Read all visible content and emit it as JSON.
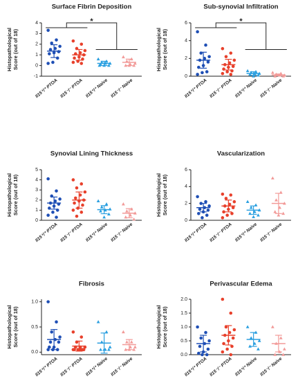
{
  "chart_data": [
    {
      "type": "strip",
      "title": "Surface Fibrin Deposition",
      "ylabel": [
        "Histopathological",
        "Score (out of 18)"
      ],
      "categories": [
        "Il15⁺/⁺ PTOA",
        "Il15⁻/⁻ PTOA",
        "Il15⁺/⁺ Naive",
        "Il15⁻/⁻ Naive"
      ],
      "colors": [
        "#1f4fb5",
        "#e8412c",
        "#2a9fe0",
        "#f29a98"
      ],
      "points": [
        [
          3.3,
          2.4,
          2.1,
          1.8,
          1.6,
          1.5,
          1.3,
          1.2,
          1.1,
          0.7,
          0.3,
          0.2
        ],
        [
          2.3,
          2.0,
          1.6,
          1.4,
          1.2,
          1.1,
          1.0,
          0.8,
          0.7,
          0.6,
          0.4,
          0.3,
          0.2
        ],
        [
          0.6,
          0.4,
          0.3,
          0.2,
          0.2,
          0.1,
          0.0,
          0.0,
          0.0
        ],
        [
          0.8,
          0.6,
          0.4,
          0.2,
          0.1,
          0.0,
          0.0,
          0.0
        ]
      ],
      "means": [
        1.35,
        1.0,
        0.2,
        0.3
      ],
      "errors": [
        0.6,
        0.5,
        0.2,
        0.3
      ],
      "ylim": [
        -1,
        4
      ],
      "yticks": [
        -1,
        0,
        1,
        2,
        3,
        4
      ],
      "annotation": "*"
    },
    {
      "type": "strip",
      "title": "Sub-synovial Infiltration",
      "ylabel": [
        "Histopathological",
        "Score (out of 18)"
      ],
      "categories": [
        "Il15⁺/⁺ PTOA",
        "Il15⁻/⁻ PTOA",
        "Il15⁺/⁺ Naive",
        "Il15⁻/⁻ Naive"
      ],
      "colors": [
        "#1f4fb5",
        "#e8412c",
        "#2a9fe0",
        "#f29a98"
      ],
      "points": [
        [
          5.0,
          3.5,
          2.6,
          2.2,
          2.0,
          1.8,
          1.6,
          1.2,
          1.0,
          0.5,
          0.4,
          0.2
        ],
        [
          3.1,
          2.6,
          2.2,
          1.8,
          1.5,
          1.3,
          1.1,
          1.0,
          0.8,
          0.6,
          0.5,
          0.3,
          0.2
        ],
        [
          0.6,
          0.5,
          0.4,
          0.3,
          0.3,
          0.2,
          0.1,
          0.0
        ],
        [
          0.4,
          0.3,
          0.2,
          0.1,
          0.1,
          0.0,
          0.0
        ]
      ],
      "means": [
        1.8,
        1.3,
        0.3,
        0.15
      ],
      "errors": [
        0.9,
        0.6,
        0.2,
        0.1
      ],
      "ylim": [
        0,
        6
      ],
      "yticks": [
        0,
        2,
        4,
        6
      ],
      "annotation": "*"
    },
    {
      "type": "strip",
      "title": "Synovial Lining Thickness",
      "ylabel": [
        "Histopathological",
        "Score (out of 18)"
      ],
      "categories": [
        "Il15⁺/⁺ PTOA",
        "Il15⁻/⁻ PTOA",
        "Il15⁺/⁺ Naive",
        "Il15⁻/⁻ Naive"
      ],
      "colors": [
        "#1f4fb5",
        "#e8412c",
        "#2a9fe0",
        "#f29a98"
      ],
      "points": [
        [
          4.1,
          2.9,
          2.4,
          2.1,
          1.9,
          1.7,
          1.6,
          1.4,
          1.2,
          1.0,
          0.8,
          0.5,
          0.3
        ],
        [
          4.0,
          3.6,
          3.2,
          2.8,
          2.5,
          2.2,
          2.0,
          1.9,
          1.7,
          1.5,
          1.2,
          1.0,
          0.8,
          0.4
        ],
        [
          1.9,
          1.6,
          1.3,
          1.1,
          1.0,
          0.9,
          0.6,
          0.3
        ],
        [
          1.6,
          1.1,
          0.9,
          0.7,
          0.5,
          0.3,
          0.1
        ]
      ],
      "means": [
        1.7,
        2.0,
        1.05,
        0.7
      ],
      "errors": [
        0.6,
        0.8,
        0.4,
        0.45
      ],
      "ylim": [
        0,
        5
      ],
      "yticks": [
        0,
        1,
        2,
        3,
        4,
        5
      ]
    },
    {
      "type": "strip",
      "title": "Vascularization",
      "ylabel": [
        "Histopathological",
        "Score (out of 18)"
      ],
      "categories": [
        "Il15⁺/⁺ PTOA",
        "Il15⁻/⁻ PTOA",
        "Il15⁺/⁺ Naive",
        "Il15⁻/⁻ Naive"
      ],
      "colors": [
        "#1f4fb5",
        "#e8412c",
        "#2a9fe0",
        "#f29a98"
      ],
      "points": [
        [
          2.8,
          2.2,
          2.0,
          1.7,
          1.5,
          1.3,
          1.2,
          1.0,
          0.8,
          0.6,
          0.3
        ],
        [
          3.1,
          3.0,
          2.6,
          2.2,
          1.9,
          1.7,
          1.5,
          1.3,
          1.0,
          0.8,
          0.6,
          0.3
        ],
        [
          2.2,
          1.8,
          1.5,
          1.2,
          1.0,
          0.8,
          0.6,
          0.4
        ],
        [
          5.0,
          3.3,
          2.4,
          2.0,
          1.5,
          1.0,
          0.8,
          0.6
        ]
      ],
      "means": [
        1.5,
        1.7,
        1.2,
        2.0
      ],
      "errors": [
        0.5,
        0.7,
        0.5,
        1.2
      ],
      "ylim": [
        0,
        6
      ],
      "yticks": [
        0,
        2,
        4,
        6
      ]
    },
    {
      "type": "strip",
      "title": "Fibrosis",
      "ylabel": [
        "Histopathological",
        "Score (out of 18)"
      ],
      "categories": [
        "Il15⁺/⁺ PTOA",
        "Il15⁻/⁻ PTOA",
        "Il15⁺/⁺ Naive",
        "Il15⁻/⁻ Naive"
      ],
      "colors": [
        "#1f4fb5",
        "#e8412c",
        "#2a9fe0",
        "#f29a98"
      ],
      "points": [
        [
          1.0,
          0.6,
          0.4,
          0.3,
          0.25,
          0.2,
          0.2,
          0.1,
          0.1,
          0.05,
          0.05,
          0.05
        ],
        [
          0.4,
          0.3,
          0.2,
          0.1,
          0.1,
          0.1,
          0.05,
          0.05,
          0.05,
          0.05,
          0.05,
          0.05,
          0.05
        ],
        [
          0.6,
          0.4,
          0.2,
          0.1,
          0.05,
          0.05,
          0.05,
          0.05
        ],
        [
          0.4,
          0.2,
          0.2,
          0.1,
          0.1,
          0.05,
          0.05,
          0.05
        ]
      ],
      "means": [
        0.25,
        0.12,
        0.18,
        0.15
      ],
      "errors": [
        0.2,
        0.1,
        0.2,
        0.1
      ],
      "ylim": [
        -0.05,
        1.05
      ],
      "yticks": [
        {
          "value": 0,
          "label": "0.0"
        },
        {
          "value": 0.5,
          "label": "0.5"
        },
        {
          "value": 1,
          "label": "1.0"
        }
      ]
    },
    {
      "type": "strip",
      "title": "Perivascular Edema",
      "ylabel": [
        "Histopathological",
        "Score (out of 18)"
      ],
      "categories": [
        "Il15⁺/⁺ PTOA",
        "Il15⁻/⁻ PTOA",
        "Il15⁺/⁺ Naive",
        "Il15⁻/⁻ Naive"
      ],
      "colors": [
        "#1f4fb5",
        "#e8412c",
        "#2a9fe0",
        "#f29a98"
      ],
      "points": [
        [
          1.0,
          0.8,
          0.6,
          0.5,
          0.4,
          0.3,
          0.2,
          0.1,
          0.05,
          0.0,
          0.0
        ],
        [
          2.0,
          1.5,
          1.0,
          0.9,
          0.8,
          0.7,
          0.6,
          0.5,
          0.4,
          0.3,
          0.2,
          0.1,
          0.0
        ],
        [
          1.0,
          0.8,
          0.6,
          0.5,
          0.4,
          0.3,
          0.2
        ],
        [
          1.0,
          0.6,
          0.4,
          0.2,
          0.1,
          0.0,
          0.0
        ]
      ],
      "means": [
        0.4,
        0.7,
        0.55,
        0.4
      ],
      "errors": [
        0.3,
        0.35,
        0.25,
        0.3
      ],
      "ylim": [
        0,
        2
      ],
      "yticks": [
        {
          "value": 0,
          "label": "0.0"
        },
        {
          "value": 0.5,
          "label": "0.5"
        },
        {
          "value": 1,
          "label": "1.0"
        },
        {
          "value": 1.5,
          "label": "1.5"
        },
        {
          "value": 2,
          "label": "2.0"
        }
      ]
    }
  ]
}
